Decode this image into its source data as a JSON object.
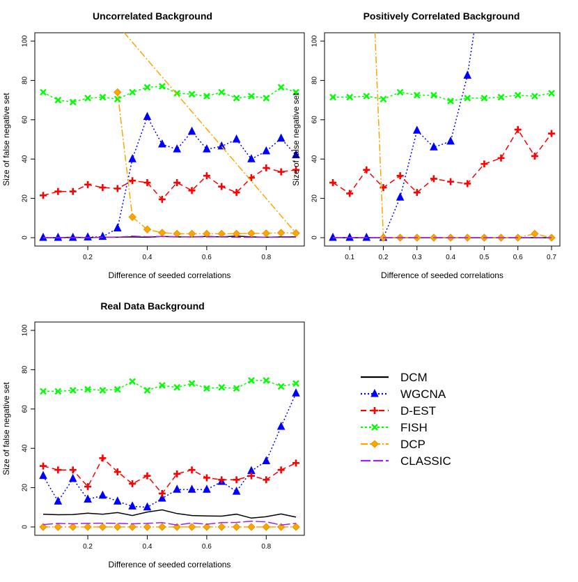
{
  "series_styles": [
    {
      "name": "DCM",
      "color": "#000000",
      "dash": "",
      "marker": "none"
    },
    {
      "name": "WGCNA",
      "color": "#0000ff",
      "dash": "2,3",
      "marker": "triangle"
    },
    {
      "name": "D-EST",
      "color": "#ff0000",
      "dash": "8,5",
      "marker": "plus"
    },
    {
      "name": "FISH",
      "color": "#00ff00",
      "dash": "3,3",
      "marker": "cross"
    },
    {
      "name": "DCP",
      "color": "#ffa500",
      "dash": "10,3,2,3",
      "marker": "diamond"
    },
    {
      "name": "CLASSIC",
      "color": "#a020f0",
      "dash": "14,4",
      "marker": "none"
    }
  ],
  "legend": {
    "position": "right",
    "labels": [
      "DCM",
      "WGCNA",
      "D-EST",
      "FISH",
      "DCP",
      "CLASSIC"
    ]
  },
  "chart_data": [
    {
      "type": "line",
      "title": "Uncorrelated Background",
      "xlabel": "Difference of seeded correlations",
      "ylabel": "Size of false negative set",
      "xlim": [
        0.05,
        0.9
      ],
      "ylim": [
        0,
        100
      ],
      "xticks": [
        0.2,
        0.4,
        0.6,
        0.8
      ],
      "yticks": [
        0,
        20,
        40,
        60,
        80,
        100
      ],
      "x": [
        0.05,
        0.1,
        0.15,
        0.2,
        0.25,
        0.3,
        0.35,
        0.4,
        0.45,
        0.5,
        0.55,
        0.6,
        0.65,
        0.7,
        0.75,
        0.8,
        0.85,
        0.9
      ],
      "series": [
        {
          "name": "DCM",
          "values": [
            0,
            0,
            0.2,
            0,
            0.2,
            0.2,
            0.4,
            0.2,
            0.6,
            0.4,
            0.4,
            0.6,
            0.4,
            0.8,
            0.4,
            0.2,
            0.4,
            0.4
          ]
        },
        {
          "name": "WGCNA",
          "values": [
            0,
            0,
            0,
            0.2,
            0.5,
            4.8,
            40,
            61.5,
            47.5,
            45,
            54,
            45,
            46.5,
            50,
            40,
            44,
            50.5,
            42
          ]
        },
        {
          "name": "D-EST",
          "values": [
            21.5,
            23.5,
            23.5,
            27,
            25.5,
            25,
            29,
            28,
            19.5,
            28,
            24,
            31.5,
            26,
            23,
            30.5,
            35.5,
            33.5,
            34.5
          ]
        },
        {
          "name": "FISH",
          "values": [
            74,
            70,
            69,
            71,
            71.5,
            70.5,
            74,
            76.5,
            77,
            73.5,
            73,
            72,
            74,
            71,
            72,
            71,
            76.5,
            74
          ]
        },
        {
          "name": "DCP",
          "values": [
            null,
            null,
            null,
            null,
            null,
            74,
            10.5,
            4.2,
            2.5,
            2,
            2,
            2,
            2,
            2,
            2.2,
            2.2,
            2.5,
            2.3
          ],
          "line_extends_to": [
            0.29,
            110
          ]
        },
        {
          "name": "CLASSIC",
          "values": [
            0,
            0,
            0,
            0,
            0.2,
            0.2,
            0.8,
            0.5,
            0.6,
            0.5,
            0.4,
            0.4,
            0.4,
            0.2,
            0.2,
            0.2,
            0.2,
            0.2
          ]
        }
      ]
    },
    {
      "type": "line",
      "title": "Positively Correlated Background",
      "xlabel": "Difference of seeded correlations",
      "ylabel": "Size of false negative set",
      "xlim": [
        0.05,
        0.7
      ],
      "ylim": [
        0,
        100
      ],
      "xticks": [
        0.1,
        0.2,
        0.3,
        0.4,
        0.5,
        0.6,
        0.7
      ],
      "yticks": [
        0,
        20,
        40,
        60,
        80,
        100
      ],
      "x": [
        0.05,
        0.1,
        0.15,
        0.2,
        0.25,
        0.3,
        0.35,
        0.4,
        0.45,
        0.5,
        0.55,
        0.6,
        0.65,
        0.7
      ],
      "series": [
        {
          "name": "DCM",
          "values": [
            0,
            0,
            0,
            0,
            0,
            0,
            0,
            0,
            0,
            0,
            0,
            0,
            0,
            0
          ]
        },
        {
          "name": "WGCNA",
          "values": [
            0,
            0,
            0,
            0,
            20.5,
            54.5,
            46,
            49,
            82.5,
            null,
            null,
            null,
            null,
            null
          ],
          "line_extends_to": [
            0.47,
            105
          ]
        },
        {
          "name": "D-EST",
          "values": [
            28,
            22.5,
            34.5,
            25.5,
            31.5,
            23,
            30,
            28.5,
            27.5,
            37.5,
            40.5,
            55,
            41.5,
            53
          ]
        },
        {
          "name": "FISH",
          "values": [
            71.5,
            71.5,
            72,
            70.5,
            74,
            72.5,
            72.5,
            69.5,
            71,
            71,
            71.5,
            72.5,
            72,
            73.5
          ]
        },
        {
          "name": "DCP",
          "values": [
            null,
            null,
            null,
            0,
            0,
            0,
            0,
            0,
            0,
            0,
            0,
            0,
            2,
            0
          ],
          "line_extends_from": [
            0.175,
            105
          ]
        },
        {
          "name": "CLASSIC",
          "values": [
            0,
            0,
            0,
            0,
            0,
            0,
            0,
            0,
            0,
            0,
            0,
            0,
            0,
            0
          ]
        }
      ]
    },
    {
      "type": "line",
      "title": "Real Data Background",
      "xlabel": "Difference of seeded correlations",
      "ylabel": "Size of false negative set",
      "xlim": [
        0.05,
        0.9
      ],
      "ylim": [
        0,
        100
      ],
      "xticks": [
        0.2,
        0.4,
        0.6,
        0.8
      ],
      "yticks": [
        0,
        20,
        40,
        60,
        80,
        100
      ],
      "x": [
        0.05,
        0.1,
        0.15,
        0.2,
        0.25,
        0.3,
        0.35,
        0.4,
        0.45,
        0.5,
        0.55,
        0.6,
        0.65,
        0.7,
        0.75,
        0.8,
        0.85,
        0.9
      ],
      "series": [
        {
          "name": "DCM",
          "values": [
            6.5,
            6.2,
            6.3,
            7,
            6.5,
            7.3,
            5.8,
            7.6,
            8.7,
            6.8,
            5.8,
            5.6,
            5.5,
            6.5,
            4.5,
            5.2,
            6.6,
            5
          ]
        },
        {
          "name": "WGCNA",
          "values": [
            26,
            13,
            24.5,
            14,
            16,
            13,
            10.5,
            10,
            14.5,
            19,
            19,
            19,
            23,
            18,
            28.5,
            33.5,
            51,
            68
          ]
        },
        {
          "name": "D-EST",
          "values": [
            31,
            29,
            29,
            20.5,
            35,
            28,
            22,
            26,
            17,
            27,
            29,
            25,
            24,
            24,
            26,
            24,
            29,
            32.5
          ]
        },
        {
          "name": "FISH",
          "values": [
            69,
            69,
            69.5,
            70,
            69.5,
            70,
            74,
            69.5,
            72,
            71,
            73,
            70.5,
            71,
            70.5,
            74.5,
            74.5,
            71.5,
            73
          ]
        },
        {
          "name": "DCP",
          "values": [
            0,
            0,
            0,
            0,
            0,
            0,
            0,
            0,
            0,
            0,
            0,
            0,
            0,
            0,
            0,
            0,
            0,
            0
          ]
        },
        {
          "name": "CLASSIC",
          "values": [
            1.2,
            1.8,
            1.6,
            1.8,
            1.9,
            1.8,
            1.6,
            1.8,
            2.2,
            1,
            2,
            1.4,
            2.2,
            2.3,
            2.9,
            2.6,
            1,
            1.8
          ]
        }
      ]
    }
  ]
}
